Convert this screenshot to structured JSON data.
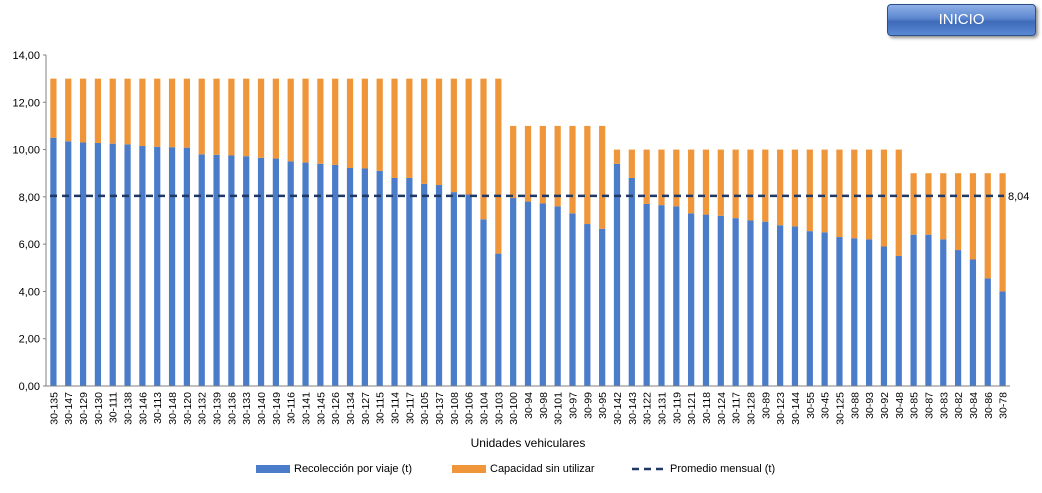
{
  "button": {
    "label": "INICIO"
  },
  "chart_data": {
    "type": "bar",
    "stacked": true,
    "xlabel": "Unidades vehiculares",
    "ylabel": "",
    "ylim": [
      0,
      14
    ],
    "yticks": [
      "0,00",
      "2,00",
      "4,00",
      "6,00",
      "8,00",
      "10,00",
      "12,00",
      "14,00"
    ],
    "grid": false,
    "legend": "bottom",
    "categories": [
      "30-135",
      "30-147",
      "30-129",
      "30-130",
      "30-111",
      "30-138",
      "30-146",
      "30-113",
      "30-148",
      "30-120",
      "30-132",
      "30-139",
      "30-136",
      "30-133",
      "30-140",
      "30-149",
      "30-116",
      "30-141",
      "30-145",
      "30-126",
      "30-134",
      "30-127",
      "30-115",
      "30-114",
      "30-117",
      "30-105",
      "30-137",
      "30-108",
      "30-106",
      "30-104",
      "30-103",
      "30-100",
      "30-94",
      "30-98",
      "30-101",
      "30-97",
      "30-99",
      "30-95",
      "30-142",
      "30-143",
      "30-122",
      "30-131",
      "30-119",
      "30-121",
      "30-118",
      "30-124",
      "30-117",
      "30-128",
      "30-89",
      "30-123",
      "30-144",
      "30-55",
      "30-45",
      "30-125",
      "30-88",
      "30-93",
      "30-92",
      "30-48",
      "30-85",
      "30-87",
      "30-83",
      "30-82",
      "30-84",
      "30-86",
      "30-78"
    ],
    "series": [
      {
        "name": "Recolección por viaje (t)",
        "color": "#4a7cc9",
        "values": [
          10.5,
          10.35,
          10.3,
          10.28,
          10.25,
          10.22,
          10.15,
          10.12,
          10.1,
          10.08,
          9.8,
          9.78,
          9.75,
          9.72,
          9.65,
          9.62,
          9.5,
          9.45,
          9.4,
          9.35,
          9.22,
          9.2,
          9.1,
          8.8,
          8.8,
          8.55,
          8.5,
          8.2,
          8.1,
          7.05,
          5.6,
          7.95,
          7.8,
          7.72,
          7.6,
          7.3,
          6.85,
          6.65,
          9.4,
          8.8,
          7.7,
          7.65,
          7.6,
          7.3,
          7.25,
          7.2,
          7.1,
          7.0,
          6.95,
          6.8,
          6.75,
          6.55,
          6.5,
          6.3,
          6.25,
          6.2,
          5.9,
          5.5,
          6.4,
          6.4,
          6.2,
          5.75,
          5.35,
          4.55,
          4.0
        ]
      },
      {
        "name": "Capacidad sin utilizar",
        "color": "#f0963a",
        "values": [
          2.5,
          2.65,
          2.7,
          2.72,
          2.75,
          2.78,
          2.85,
          2.88,
          2.9,
          2.92,
          3.2,
          3.22,
          3.25,
          3.28,
          3.35,
          3.38,
          3.5,
          3.55,
          3.6,
          3.65,
          3.78,
          3.8,
          3.9,
          4.2,
          4.2,
          4.45,
          4.5,
          4.8,
          4.9,
          5.95,
          7.4,
          3.05,
          3.2,
          3.28,
          3.4,
          3.7,
          4.15,
          4.35,
          0.6,
          1.2,
          2.3,
          2.35,
          2.4,
          2.7,
          2.75,
          2.8,
          2.9,
          3.0,
          3.05,
          3.2,
          3.25,
          3.45,
          3.5,
          3.7,
          3.75,
          3.8,
          4.1,
          4.5,
          2.6,
          2.6,
          2.8,
          3.25,
          3.65,
          4.45,
          5.0
        ]
      }
    ],
    "average": {
      "name": "Promedio mensual (t)",
      "value": 8.04,
      "label": "8,04",
      "color": "#1f3864"
    }
  }
}
